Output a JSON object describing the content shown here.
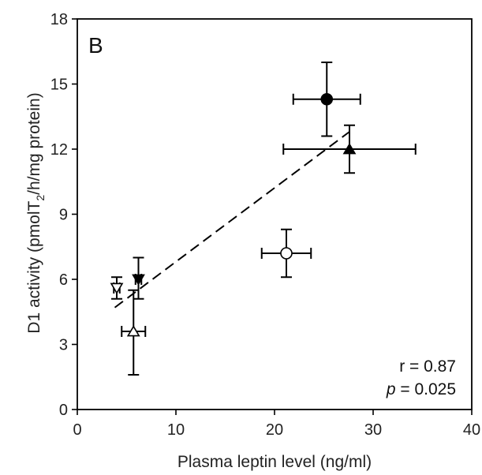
{
  "chart_data": {
    "type": "scatter",
    "panel_label": "B",
    "xlabel": "Plasma leptin level (ng/ml)",
    "ylabel_parts": [
      "D1 activity  (pmolT",
      "2",
      "/h/mg protein)"
    ],
    "xlim": [
      0,
      40
    ],
    "ylim": [
      0,
      18
    ],
    "xticks": [
      0,
      10,
      20,
      30,
      40
    ],
    "yticks": [
      0,
      3,
      6,
      9,
      12,
      15,
      18
    ],
    "grid": false,
    "points": [
      {
        "marker": "filled-circle",
        "x": 25.3,
        "y": 14.3,
        "xerr": 3.4,
        "yerr_low": 1.7,
        "yerr_high": 1.7
      },
      {
        "marker": "filled-triangle",
        "x": 27.6,
        "y": 12.0,
        "xerr": 6.7,
        "yerr_low": 1.1,
        "yerr_high": 1.1
      },
      {
        "marker": "open-circle",
        "x": 21.2,
        "y": 7.2,
        "xerr": 2.5,
        "yerr_low": 1.1,
        "yerr_high": 1.1
      },
      {
        "marker": "filled-inverted-triangle",
        "x": 6.2,
        "y": 6.0,
        "xerr": 0.3,
        "yerr_low": 0.9,
        "yerr_high": 1.0
      },
      {
        "marker": "open-inverted-triangle",
        "x": 4.0,
        "y": 5.6,
        "xerr": 0.3,
        "yerr_low": 0.5,
        "yerr_high": 0.5
      },
      {
        "marker": "open-triangle",
        "x": 5.7,
        "y": 3.6,
        "xerr": 1.2,
        "yerr_low": 2.0,
        "yerr_high": 1.9
      }
    ],
    "trendline": {
      "style": "dashed",
      "x": [
        3.8,
        27.6
      ],
      "y": [
        4.7,
        12.8
      ]
    },
    "stats": {
      "r_text": "r = 0.87",
      "p_symbol": "p",
      "p_value": " = 0.025"
    }
  }
}
